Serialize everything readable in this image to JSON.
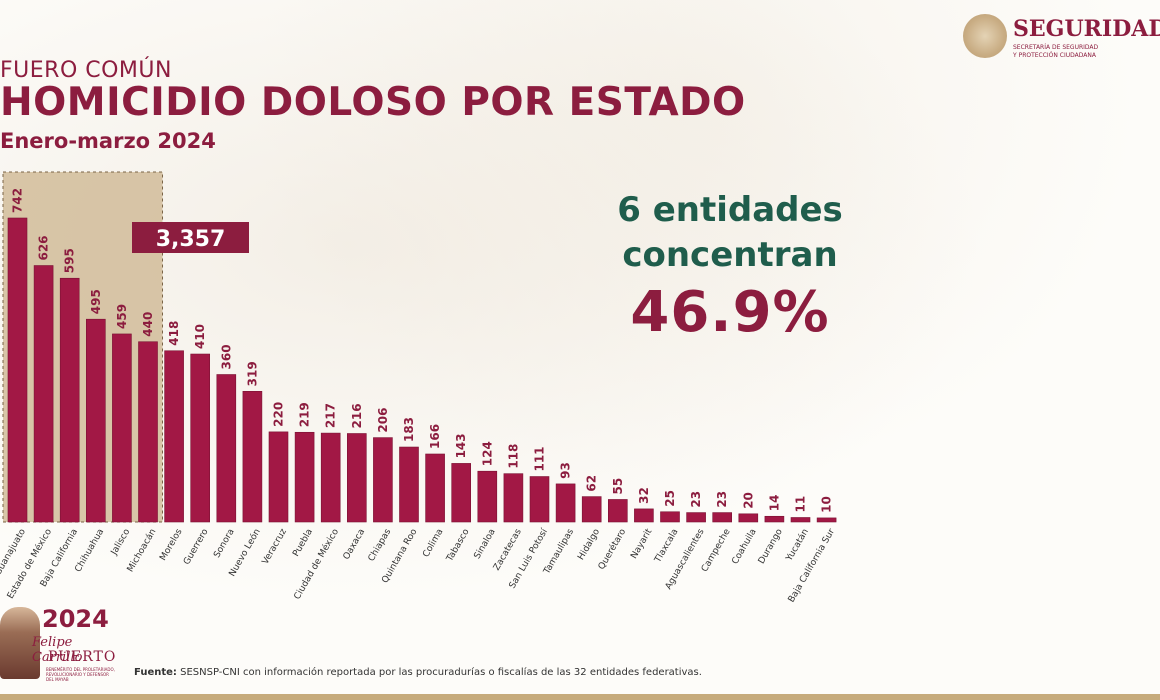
{
  "header": {
    "kicker": "FUERO COMÚN",
    "title": "HOMICIDIO DOLOSO POR ESTADO",
    "subtitle": "Enero-marzo 2024"
  },
  "logo": {
    "wordmark": "SEGURIDAD",
    "sub1": "SECRETARÍA DE SEGURIDAD",
    "sub2": "Y PROTECCIÓN CIUDADANA"
  },
  "headline": {
    "line1": "6 entidades",
    "line2": "concentran",
    "percent": "46.9%"
  },
  "badge": {
    "year": "2024",
    "name_line1": "Felipe Carrillo",
    "name_line2": "PUERTO",
    "small": "BENEMÉRITO DEL PROLETARIADO, REVOLUCIONARIO Y DEFENSOR DEL MAYAB"
  },
  "footer": {
    "source_label": "Fuente:",
    "source_text": " SESNSP-CNI con información reportada por las procuradurías o fiscalías de las 32 entidades federativas."
  },
  "colors": {
    "bar": "#a21845",
    "accent": "#8c1d3f",
    "green": "#1f5d4c",
    "highlight_box": "#ccb48e"
  },
  "chart_data": {
    "type": "bar",
    "categories": [
      "Guanajuato",
      "Estado de México",
      "Baja California",
      "Chihuahua",
      "Jalisco",
      "Michoacán",
      "Morelos",
      "Guerrero",
      "Sonora",
      "Nuevo León",
      "Veracruz",
      "Puebla",
      "Ciudad de México",
      "Oaxaca",
      "Chiapas",
      "Quintana Roo",
      "Colima",
      "Tabasco",
      "Sinaloa",
      "Zacatecas",
      "San Luis Potosí",
      "Tamaulipas",
      "Hidalgo",
      "Querétaro",
      "Nayarit",
      "Tlaxcala",
      "Aguascalientes",
      "Campeche",
      "Coahuila",
      "Durango",
      "Yucatán",
      "Baja California Sur"
    ],
    "values": [
      742,
      626,
      595,
      495,
      459,
      440,
      418,
      410,
      360,
      319,
      220,
      219,
      217,
      216,
      206,
      183,
      166,
      143,
      124,
      118,
      111,
      93,
      62,
      55,
      32,
      25,
      23,
      23,
      20,
      14,
      11,
      10
    ],
    "value_labels": [
      "742",
      "626",
      "595",
      "495",
      "459",
      "440",
      "418",
      "410",
      "360",
      "319",
      "220",
      "219",
      "217",
      "216",
      "206",
      "183",
      "166",
      "143",
      "124",
      "118",
      "111",
      "93",
      "62",
      "55",
      "32",
      "25",
      "23",
      "23",
      "20",
      "14",
      "11",
      "10"
    ],
    "highlight": {
      "first_n": 6,
      "total_label": "3,357"
    },
    "ylim": [
      0,
      742
    ],
    "grid": false,
    "legend": "none"
  }
}
